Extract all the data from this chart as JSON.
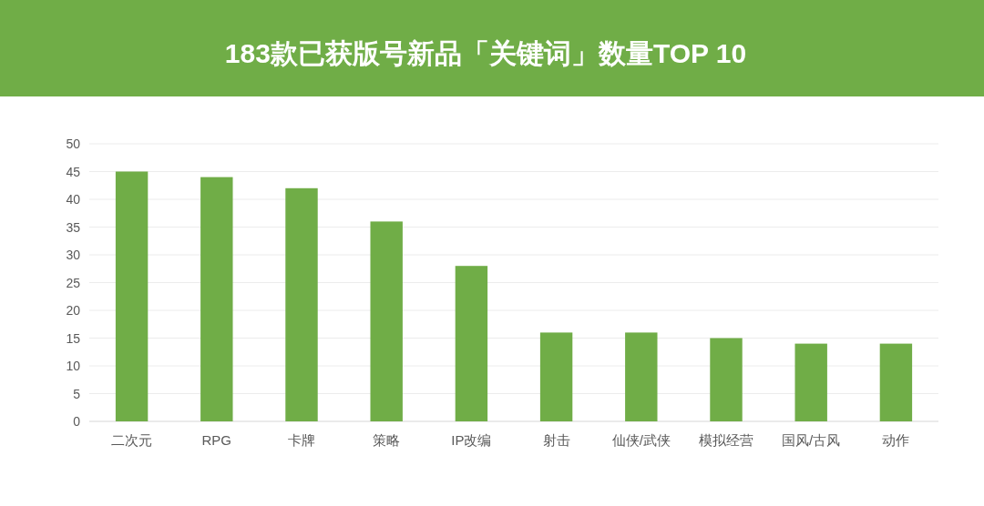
{
  "chart_data": {
    "type": "bar",
    "title": "183款已获版号新品「关键词」数量TOP 10",
    "categories": [
      "二次元",
      "RPG",
      "卡牌",
      "策略",
      "IP改编",
      "射击",
      "仙侠/武侠",
      "模拟经营",
      "国风/古风",
      "动作"
    ],
    "values": [
      45,
      44,
      42,
      36,
      28,
      16,
      16,
      15,
      14,
      14
    ],
    "color": "#70ad47",
    "ylim": [
      0,
      50
    ],
    "yticks": [
      0,
      5,
      10,
      15,
      20,
      25,
      30,
      35,
      40,
      45,
      50
    ],
    "grid": "y"
  }
}
